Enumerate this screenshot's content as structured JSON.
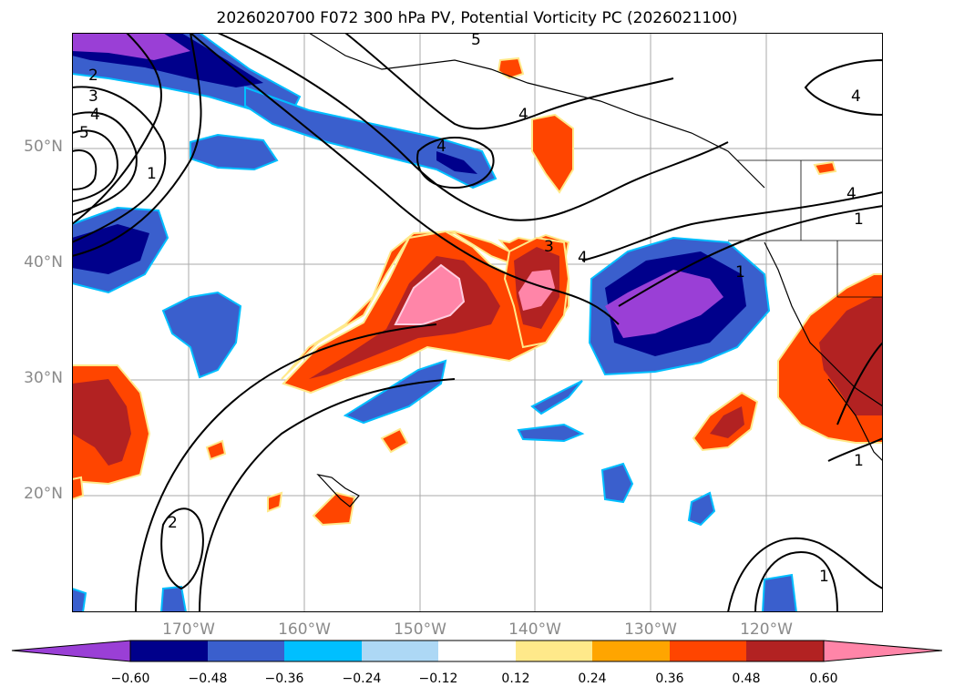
{
  "title": "2026020700 F072 300 hPa PV, Potential Vorticity PC (2026021100)",
  "lat_labels": [
    "50°N",
    "40°N",
    "30°N",
    "20°N"
  ],
  "lon_labels": [
    "170°W",
    "160°W",
    "150°W",
    "140°W",
    "130°W",
    "120°W"
  ],
  "colorbar": {
    "ticks": [
      "−0.60",
      "−0.48",
      "−0.36",
      "−0.24",
      "−0.12",
      "0.12",
      "0.24",
      "0.36",
      "0.48",
      "0.60"
    ],
    "colors": [
      "#9a3fd6",
      "#00008b",
      "#3a5fcd",
      "#00bfff",
      "#add8f5",
      "#ffffff",
      "#ffe98a",
      "#ffa500",
      "#ff4500",
      "#b22222",
      "#ff85a8"
    ]
  },
  "contour_labels": [
    "2",
    "3",
    "4",
    "5",
    "1",
    "4",
    "5",
    "4",
    "3",
    "4",
    "2",
    "1",
    "4",
    "4",
    "1",
    "1",
    "1"
  ],
  "colors": {
    "grid": "#aaaaaa",
    "contour": "#000000",
    "label": "#8a8a8a"
  }
}
